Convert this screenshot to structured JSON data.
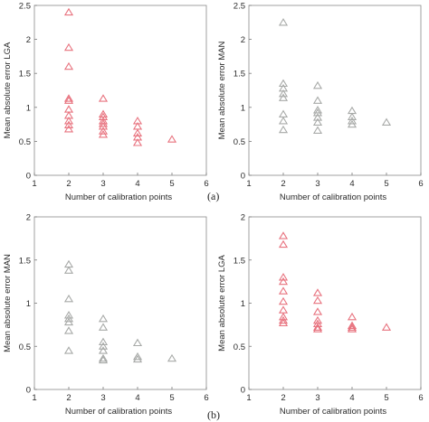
{
  "figure": {
    "panel_labels": [
      "(a)",
      "(b)"
    ]
  },
  "colors": {
    "lga": "#e8737f",
    "man": "#a8aaa8"
  },
  "chart_data": [
    {
      "type": "scatter",
      "marker": "triangle",
      "panel": "(a)",
      "xlabel": "Number of calibration points",
      "ylabel": "Mean absolute error LGA",
      "xlim": [
        1,
        6
      ],
      "ylim": [
        0,
        2.5
      ],
      "xticks": [
        "1",
        "2",
        "3",
        "4",
        "5",
        "6"
      ],
      "yticks": [
        "0",
        "0.5",
        "1",
        "1.5",
        "2",
        "2.5"
      ],
      "grid": false,
      "color": "#e8737f",
      "points": [
        {
          "x": 2,
          "y": 2.4
        },
        {
          "x": 2,
          "y": 1.88
        },
        {
          "x": 2,
          "y": 1.6
        },
        {
          "x": 2,
          "y": 1.13
        },
        {
          "x": 2,
          "y": 1.1
        },
        {
          "x": 2,
          "y": 0.97
        },
        {
          "x": 2,
          "y": 0.88
        },
        {
          "x": 2,
          "y": 0.8
        },
        {
          "x": 2,
          "y": 0.74
        },
        {
          "x": 2,
          "y": 0.68
        },
        {
          "x": 3,
          "y": 1.13
        },
        {
          "x": 3,
          "y": 0.9
        },
        {
          "x": 3,
          "y": 0.86
        },
        {
          "x": 3,
          "y": 0.8
        },
        {
          "x": 3,
          "y": 0.76
        },
        {
          "x": 3,
          "y": 0.72
        },
        {
          "x": 3,
          "y": 0.65
        },
        {
          "x": 3,
          "y": 0.6
        },
        {
          "x": 4,
          "y": 0.8
        },
        {
          "x": 4,
          "y": 0.72
        },
        {
          "x": 4,
          "y": 0.62
        },
        {
          "x": 4,
          "y": 0.56
        },
        {
          "x": 4,
          "y": 0.48
        },
        {
          "x": 5,
          "y": 0.53
        }
      ]
    },
    {
      "type": "scatter",
      "marker": "triangle",
      "panel": "(a)",
      "xlabel": "Number of calibration points",
      "ylabel": "Mean absolute error MAN",
      "xlim": [
        1,
        6
      ],
      "ylim": [
        0,
        2.5
      ],
      "xticks": [
        "1",
        "2",
        "3",
        "4",
        "5",
        "6"
      ],
      "yticks": [
        "0",
        "0.5",
        "1",
        "1.5",
        "2",
        "2.5"
      ],
      "grid": false,
      "color": "#a8aaa8",
      "points": [
        {
          "x": 2,
          "y": 2.25
        },
        {
          "x": 2,
          "y": 1.35
        },
        {
          "x": 2,
          "y": 1.28
        },
        {
          "x": 2,
          "y": 1.2
        },
        {
          "x": 2,
          "y": 1.14
        },
        {
          "x": 2,
          "y": 0.9
        },
        {
          "x": 2,
          "y": 0.8
        },
        {
          "x": 2,
          "y": 0.67
        },
        {
          "x": 3,
          "y": 1.32
        },
        {
          "x": 3,
          "y": 1.1
        },
        {
          "x": 3,
          "y": 0.96
        },
        {
          "x": 3,
          "y": 0.92
        },
        {
          "x": 3,
          "y": 0.85
        },
        {
          "x": 3,
          "y": 0.78
        },
        {
          "x": 3,
          "y": 0.66
        },
        {
          "x": 4,
          "y": 0.95
        },
        {
          "x": 4,
          "y": 0.86
        },
        {
          "x": 4,
          "y": 0.8
        },
        {
          "x": 4,
          "y": 0.75
        },
        {
          "x": 5,
          "y": 0.78
        }
      ]
    },
    {
      "type": "scatter",
      "marker": "triangle",
      "panel": "(b)",
      "xlabel": "Number of calibration points",
      "ylabel": "Mean absolute error MAN",
      "xlim": [
        1,
        6
      ],
      "ylim": [
        0,
        2
      ],
      "xticks": [
        "1",
        "2",
        "3",
        "4",
        "5",
        "6"
      ],
      "yticks": [
        "0",
        "0.5",
        "1",
        "1.5",
        "2"
      ],
      "grid": false,
      "color": "#a8aaa8",
      "points": [
        {
          "x": 2,
          "y": 1.45
        },
        {
          "x": 2,
          "y": 1.38
        },
        {
          "x": 2,
          "y": 1.05
        },
        {
          "x": 2,
          "y": 0.86
        },
        {
          "x": 2,
          "y": 0.82
        },
        {
          "x": 2,
          "y": 0.78
        },
        {
          "x": 2,
          "y": 0.68
        },
        {
          "x": 2,
          "y": 0.45
        },
        {
          "x": 3,
          "y": 0.82
        },
        {
          "x": 3,
          "y": 0.72
        },
        {
          "x": 3,
          "y": 0.55
        },
        {
          "x": 3,
          "y": 0.5
        },
        {
          "x": 3,
          "y": 0.45
        },
        {
          "x": 3,
          "y": 0.36
        },
        {
          "x": 3,
          "y": 0.34
        },
        {
          "x": 4,
          "y": 0.54
        },
        {
          "x": 4,
          "y": 0.38
        },
        {
          "x": 4,
          "y": 0.35
        },
        {
          "x": 5,
          "y": 0.36
        }
      ]
    },
    {
      "type": "scatter",
      "marker": "triangle",
      "panel": "(b)",
      "xlabel": "Number of calibration points",
      "ylabel": "Mean absolute error LGA",
      "xlim": [
        1,
        6
      ],
      "ylim": [
        0,
        2
      ],
      "xticks": [
        "1",
        "2",
        "3",
        "4",
        "5",
        "6"
      ],
      "yticks": [
        "0",
        "0.5",
        "1",
        "1.5",
        "2"
      ],
      "grid": false,
      "color": "#e8737f",
      "points": [
        {
          "x": 2,
          "y": 1.78
        },
        {
          "x": 2,
          "y": 1.68
        },
        {
          "x": 2,
          "y": 1.3
        },
        {
          "x": 2,
          "y": 1.25
        },
        {
          "x": 2,
          "y": 1.14
        },
        {
          "x": 2,
          "y": 1.02
        },
        {
          "x": 2,
          "y": 0.92
        },
        {
          "x": 2,
          "y": 0.84
        },
        {
          "x": 2,
          "y": 0.8
        },
        {
          "x": 2,
          "y": 0.77
        },
        {
          "x": 3,
          "y": 1.12
        },
        {
          "x": 3,
          "y": 1.03
        },
        {
          "x": 3,
          "y": 0.9
        },
        {
          "x": 3,
          "y": 0.8
        },
        {
          "x": 3,
          "y": 0.76
        },
        {
          "x": 3,
          "y": 0.72
        },
        {
          "x": 3,
          "y": 0.7
        },
        {
          "x": 4,
          "y": 0.84
        },
        {
          "x": 4,
          "y": 0.74
        },
        {
          "x": 4,
          "y": 0.72
        },
        {
          "x": 4,
          "y": 0.7
        },
        {
          "x": 5,
          "y": 0.72
        }
      ]
    }
  ]
}
